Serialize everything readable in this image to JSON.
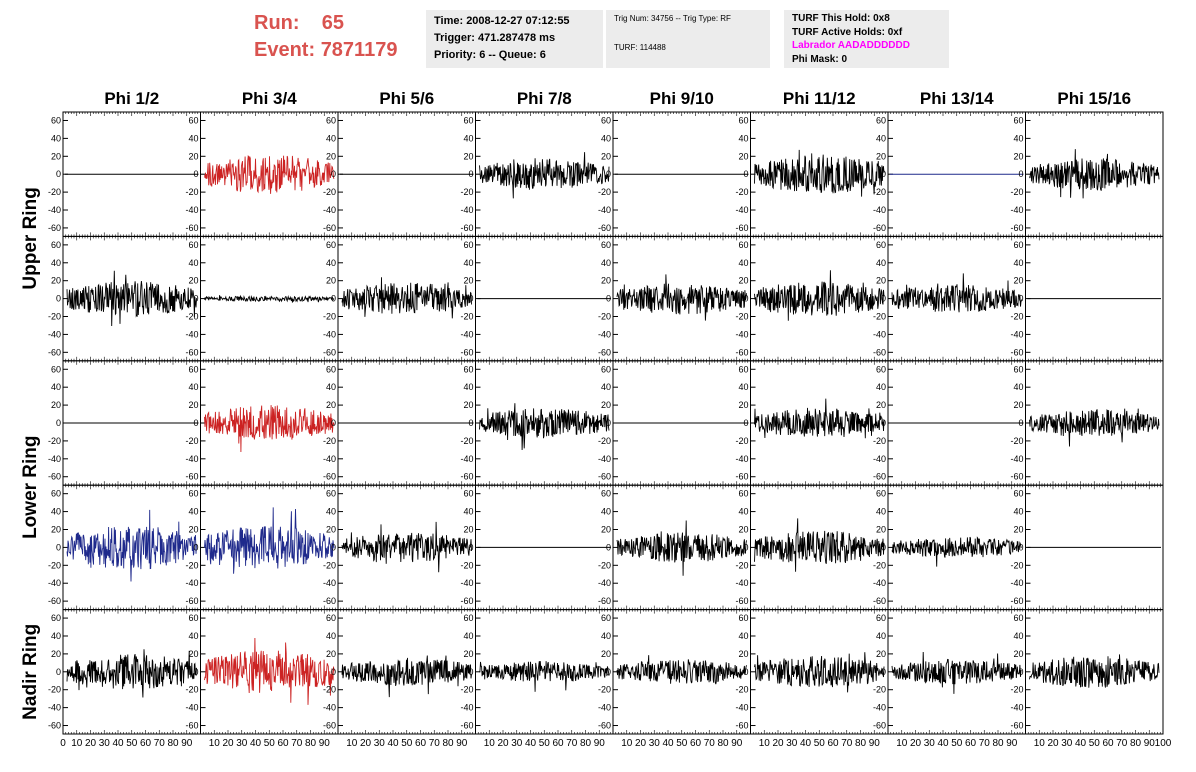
{
  "header": {
    "run_label": "Run:",
    "run_value": "65",
    "event_label": "Event:",
    "event_value": "7871179"
  },
  "info_time": {
    "time": "Time: 2008-12-27 07:12:55",
    "trigger": "Trigger: 471.287478 ms",
    "priority": "Priority: 6 -- Queue: 6"
  },
  "info_trig": {
    "trig": "Trig Num: 34756 -- Trig Type: RF",
    "turf": "TURF: 114488"
  },
  "info_turf": {
    "hold": "TURF This Hold: 0x8",
    "active": "TURF Active Holds: 0xf",
    "labrador": "Labrador AADADDDDDD",
    "phimask": "Phi Mask: 0"
  },
  "colors": {
    "black": "#000000",
    "red": "#cc2222",
    "blue": "#1f2a8c",
    "accent_text": "#d9534f",
    "magenta": "#ff00ff"
  },
  "chart_data": {
    "type": "line",
    "column_labels": [
      "Phi 1/2",
      "Phi 3/4",
      "Phi 5/6",
      "Phi 7/8",
      "Phi 9/10",
      "Phi 11/12",
      "Phi 13/14",
      "Phi 15/16"
    ],
    "row_labels": [
      "Upper Ring",
      "Upper Ring",
      "Lower Ring",
      "Lower Ring",
      "Nadir Ring"
    ],
    "ylim": [
      -65,
      65
    ],
    "yticks": [
      "60",
      "40",
      "20",
      "0",
      "-20",
      "-40",
      "-60"
    ],
    "xlim": [
      0,
      100
    ],
    "xticks": [
      "0",
      "10",
      "20",
      "30",
      "40",
      "50",
      "60",
      "70",
      "80",
      "90",
      "100"
    ],
    "panels": [
      [
        {
          "style": "noise",
          "color": "black",
          "amp": 0
        },
        {
          "style": "noise",
          "color": "red",
          "amp": 22
        },
        {
          "style": "noise",
          "color": "black",
          "amp": 0
        },
        {
          "style": "noise",
          "color": "black",
          "amp": 18
        },
        {
          "style": "noise",
          "color": "black",
          "amp": 0
        },
        {
          "style": "noise",
          "color": "black",
          "amp": 22
        },
        {
          "style": "noise",
          "color": "blue",
          "amp": 0
        },
        {
          "style": "noise",
          "color": "black",
          "amp": 18
        }
      ],
      [
        {
          "style": "noise",
          "color": "black",
          "amp": 20
        },
        {
          "style": "noise",
          "color": "black",
          "amp": 3
        },
        {
          "style": "noise",
          "color": "black",
          "amp": 18
        },
        {
          "style": "noise",
          "color": "black",
          "amp": 0
        },
        {
          "style": "noise",
          "color": "black",
          "amp": 18
        },
        {
          "style": "noise",
          "color": "black",
          "amp": 20
        },
        {
          "style": "noise",
          "color": "black",
          "amp": 16
        },
        {
          "style": "noise",
          "color": "black",
          "amp": 0
        }
      ],
      [
        {
          "style": "noise",
          "color": "black",
          "amp": 0
        },
        {
          "style": "noise",
          "color": "red",
          "amp": 20
        },
        {
          "style": "noise",
          "color": "black",
          "amp": 0
        },
        {
          "style": "noise",
          "color": "black",
          "amp": 17
        },
        {
          "style": "noise",
          "color": "black",
          "amp": 0
        },
        {
          "style": "noise",
          "color": "black",
          "amp": 17
        },
        {
          "style": "noise",
          "color": "black",
          "amp": 0
        },
        {
          "style": "noise",
          "color": "black",
          "amp": 15
        }
      ],
      [
        {
          "style": "noise",
          "color": "blue",
          "amp": 25
        },
        {
          "style": "noise",
          "color": "blue",
          "amp": 25
        },
        {
          "style": "noise",
          "color": "black",
          "amp": 17
        },
        {
          "style": "noise",
          "color": "black",
          "amp": 0
        },
        {
          "style": "noise",
          "color": "black",
          "amp": 17
        },
        {
          "style": "noise",
          "color": "black",
          "amp": 19
        },
        {
          "style": "noise",
          "color": "black",
          "amp": 12
        },
        {
          "style": "noise",
          "color": "black",
          "amp": 0
        }
      ],
      [
        {
          "style": "noise",
          "color": "black",
          "amp": 20
        },
        {
          "style": "noise",
          "color": "red",
          "amp": 25
        },
        {
          "style": "noise",
          "color": "black",
          "amp": 16
        },
        {
          "style": "noise",
          "color": "black",
          "amp": 12
        },
        {
          "style": "noise",
          "color": "black",
          "amp": 14
        },
        {
          "style": "noise",
          "color": "black",
          "amp": 18
        },
        {
          "style": "noise",
          "color": "black",
          "amp": 14
        },
        {
          "style": "noise",
          "color": "black",
          "amp": 18
        }
      ]
    ]
  }
}
